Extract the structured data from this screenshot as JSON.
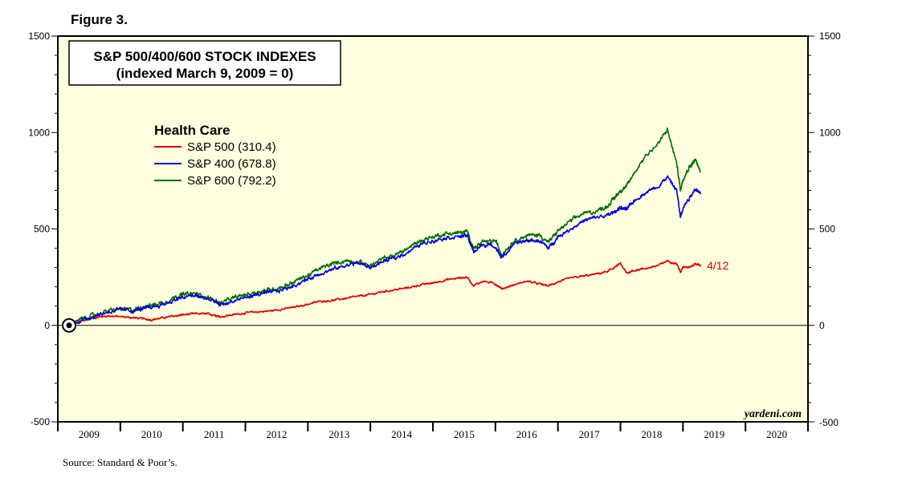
{
  "figure_label": "Figure 3.",
  "source": "Source: Standard & Poor’s.",
  "credit": "yardeni.com",
  "colors": {
    "plot_background": "#ffffe0",
    "sp500": "#e00000",
    "sp400": "#0000e0",
    "sp600": "#006e00"
  },
  "chart_data": {
    "type": "line",
    "title": [
      "S&P 500/400/600 STOCK INDEXES",
      "(indexed March 9, 2009 = 0)"
    ],
    "legend_title": "Health Care",
    "legend_position": "top-left",
    "ylim": [
      -500,
      1500
    ],
    "yticks": [
      -500,
      0,
      500,
      1000,
      1500
    ],
    "ytick_labels": [
      "-500",
      "0",
      "500",
      "1000",
      "1500"
    ],
    "xlim": [
      2009.0,
      2021.0
    ],
    "xtick_labels": [
      "2009",
      "2010",
      "2011",
      "2012",
      "2013",
      "2014",
      "2015",
      "2016",
      "2017",
      "2018",
      "2019",
      "2020"
    ],
    "grid": false,
    "zero_line": true,
    "start_marker": {
      "x": 2009.18,
      "y": 0
    },
    "end_annotation": {
      "text": "4/12",
      "series": "S&P 500"
    },
    "series": [
      {
        "name": "S&P 500",
        "label": "S&P 500 (310.4)",
        "color_key": "sp500",
        "x": [
          2009.18,
          2009.4,
          2009.6,
          2009.8,
          2010.0,
          2010.2,
          2010.35,
          2010.5,
          2010.7,
          2010.9,
          2011.0,
          2011.2,
          2011.35,
          2011.5,
          2011.6,
          2011.8,
          2012.0,
          2012.2,
          2012.4,
          2012.6,
          2012.8,
          2013.0,
          2013.2,
          2013.4,
          2013.6,
          2013.8,
          2014.0,
          2014.2,
          2014.4,
          2014.6,
          2014.8,
          2015.0,
          2015.2,
          2015.4,
          2015.55,
          2015.65,
          2015.8,
          2016.0,
          2016.1,
          2016.3,
          2016.5,
          2016.7,
          2016.85,
          2017.0,
          2017.2,
          2017.4,
          2017.6,
          2017.8,
          2017.9,
          2018.0,
          2018.1,
          2018.2,
          2018.4,
          2018.6,
          2018.75,
          2018.9,
          2018.96,
          2019.0,
          2019.1,
          2019.2,
          2019.28
        ],
        "y": [
          0,
          25,
          40,
          50,
          45,
          40,
          35,
          30,
          40,
          50,
          55,
          60,
          60,
          55,
          45,
          55,
          65,
          70,
          75,
          85,
          95,
          110,
          125,
          130,
          140,
          150,
          160,
          175,
          185,
          195,
          210,
          220,
          235,
          245,
          250,
          205,
          230,
          215,
          190,
          210,
          230,
          215,
          205,
          225,
          245,
          255,
          265,
          280,
          300,
          320,
          270,
          285,
          295,
          310,
          335,
          320,
          275,
          305,
          300,
          320,
          310
        ]
      },
      {
        "name": "S&P 400",
        "label": "S&P 400 (678.8)",
        "color_key": "sp400",
        "x": [
          2009.18,
          2009.4,
          2009.6,
          2009.8,
          2010.0,
          2010.2,
          2010.35,
          2010.5,
          2010.7,
          2010.9,
          2011.0,
          2011.2,
          2011.35,
          2011.5,
          2011.6,
          2011.8,
          2012.0,
          2012.2,
          2012.4,
          2012.6,
          2012.8,
          2013.0,
          2013.2,
          2013.4,
          2013.6,
          2013.8,
          2014.0,
          2014.2,
          2014.4,
          2014.6,
          2014.8,
          2015.0,
          2015.2,
          2015.4,
          2015.55,
          2015.65,
          2015.8,
          2016.0,
          2016.1,
          2016.3,
          2016.5,
          2016.7,
          2016.85,
          2017.0,
          2017.2,
          2017.4,
          2017.6,
          2017.8,
          2017.9,
          2018.0,
          2018.1,
          2018.2,
          2018.4,
          2018.6,
          2018.75,
          2018.9,
          2018.96,
          2019.0,
          2019.1,
          2019.2,
          2019.28
        ],
        "y": [
          0,
          30,
          50,
          70,
          80,
          75,
          85,
          95,
          110,
          135,
          145,
          155,
          140,
          125,
          105,
          125,
          145,
          160,
          170,
          185,
          210,
          240,
          270,
          290,
          310,
          325,
          300,
          330,
          350,
          380,
          420,
          440,
          455,
          460,
          465,
          380,
          420,
          410,
          350,
          420,
          440,
          440,
          400,
          460,
          500,
          540,
          560,
          570,
          590,
          610,
          600,
          640,
          690,
          720,
          770,
          700,
          560,
          610,
          660,
          710,
          680
        ]
      },
      {
        "name": "S&P 600",
        "label": "S&P 600 (792.2)",
        "color_key": "sp600",
        "x": [
          2009.18,
          2009.4,
          2009.6,
          2009.8,
          2010.0,
          2010.2,
          2010.35,
          2010.5,
          2010.7,
          2010.9,
          2011.0,
          2011.2,
          2011.35,
          2011.5,
          2011.6,
          2011.8,
          2012.0,
          2012.2,
          2012.4,
          2012.6,
          2012.8,
          2013.0,
          2013.2,
          2013.4,
          2013.6,
          2013.8,
          2014.0,
          2014.2,
          2014.4,
          2014.6,
          2014.8,
          2015.0,
          2015.2,
          2015.4,
          2015.55,
          2015.65,
          2015.8,
          2016.0,
          2016.1,
          2016.3,
          2016.5,
          2016.7,
          2016.85,
          2017.0,
          2017.2,
          2017.4,
          2017.6,
          2017.8,
          2017.9,
          2018.0,
          2018.1,
          2018.2,
          2018.4,
          2018.6,
          2018.75,
          2018.9,
          2018.96,
          2019.0,
          2019.1,
          2019.2,
          2019.28
        ],
        "y": [
          0,
          35,
          55,
          75,
          85,
          80,
          95,
          105,
          120,
          150,
          160,
          165,
          150,
          130,
          115,
          140,
          160,
          175,
          185,
          200,
          230,
          260,
          295,
          320,
          335,
          330,
          310,
          345,
          365,
          400,
          440,
          460,
          475,
          480,
          485,
          400,
          430,
          440,
          370,
          440,
          465,
          470,
          430,
          490,
          540,
          580,
          590,
          620,
          660,
          700,
          720,
          780,
          880,
          940,
          1015,
          840,
          700,
          760,
          820,
          860,
          792
        ]
      }
    ]
  }
}
